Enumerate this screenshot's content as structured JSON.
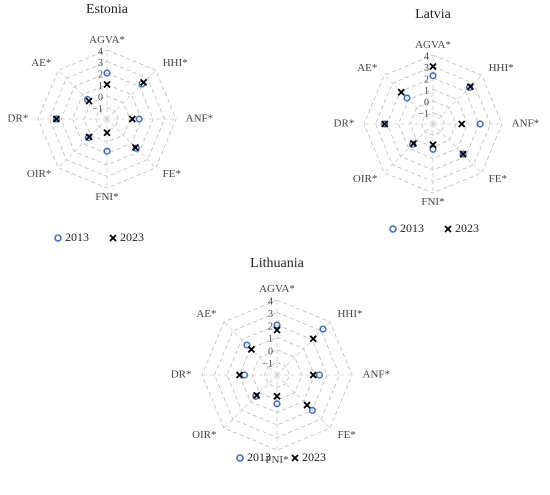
{
  "chart_data": [
    {
      "type": "radar",
      "title": "Estonia",
      "categories": [
        "AGVA*",
        "HHI*",
        "ANF*",
        "FE*",
        "FNI*",
        "OIR*",
        "DR*",
        "AE*"
      ],
      "rlim": [
        -2,
        4
      ],
      "rticks": [
        4,
        3,
        2,
        1,
        0,
        {
          "value": -1,
          "label": "−1"
        }
      ],
      "series": [
        {
          "name": "2013",
          "color": "#4472c4",
          "values": [
            2.0,
            2.3,
            0.8,
            1.6,
            0.8,
            0.3,
            2.4,
            0.4
          ]
        },
        {
          "name": "2023",
          "color": "#000000",
          "values": [
            1.0,
            2.5,
            0.2,
            1.5,
            -0.8,
            0.2,
            2.4,
            0.2
          ]
        }
      ]
    },
    {
      "type": "radar",
      "title": "Latvia",
      "categories": [
        "AGVA*",
        "HHI*",
        "ANF*",
        "FE*",
        "FNI*",
        "OIR*",
        "DR*",
        "AE*"
      ],
      "rlim": [
        -2,
        4
      ],
      "rticks": [
        4,
        3,
        2,
        1,
        0,
        {
          "value": -1,
          "label": "−1"
        }
      ],
      "series": [
        {
          "name": "2013",
          "color": "#4472c4",
          "values": [
            2.2,
            2.5,
            2.1,
            1.7,
            0.2,
            0.5,
            2.2,
            1.2
          ]
        },
        {
          "name": "2023",
          "color": "#000000",
          "values": [
            3.0,
            2.6,
            0.5,
            1.7,
            -0.2,
            0.4,
            2.2,
            1.9
          ]
        }
      ]
    },
    {
      "type": "radar",
      "title": "Lithuania",
      "categories": [
        "AGVA*",
        "HHI*",
        "ANF*",
        "FE*",
        "FNI*",
        "OIR*",
        "DR*",
        "AE*"
      ],
      "rlim": [
        -2,
        4
      ],
      "rticks": [
        4,
        3,
        2,
        1,
        0,
        {
          "value": -1,
          "label": "−1"
        }
      ],
      "series": [
        {
          "name": "2013",
          "color": "#4472c4",
          "values": [
            2.0,
            3.2,
            1.4,
            2.0,
            0.3,
            0.4,
            0.6,
            1.4
          ]
        },
        {
          "name": "2023",
          "color": "#000000",
          "values": [
            1.6,
            2.1,
            0.9,
            1.4,
            -0.3,
            0.3,
            1.0,
            0.9
          ]
        }
      ]
    }
  ]
}
